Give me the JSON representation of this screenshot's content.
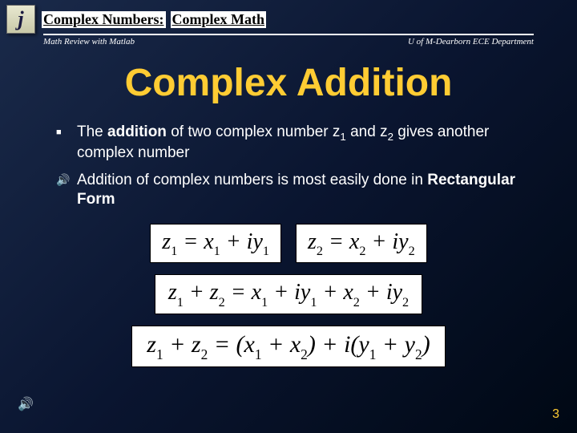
{
  "header": {
    "logo_letter": "j",
    "breadcrumb_1": "Complex Numbers:",
    "breadcrumb_2": "Complex Math",
    "sub_left": "Math Review with Matlab",
    "sub_right": "U of M-Dearborn ECE Department"
  },
  "title": "Complex Addition",
  "bullets": [
    {
      "marker": "■",
      "html": "The <b>addition</b> of two complex number z<sub>1</sub> and z<sub>2</sub> gives another complex number"
    },
    {
      "marker": "🔊",
      "html": "Addition of complex numbers is most easily done in <b>Rectangular Form</b>"
    }
  ],
  "equations": {
    "row1": [
      {
        "segments": [
          "z",
          "_1",
          " = x",
          "_1",
          " + iy",
          "_1"
        ]
      },
      {
        "segments": [
          "z",
          "_2",
          " = x",
          "_2",
          " + iy",
          "_2"
        ]
      }
    ],
    "row2": {
      "segments": [
        "z",
        "_1",
        " + z",
        "_2",
        " = x",
        "_1",
        " + iy",
        "_1",
        " + x",
        "_2",
        " + iy",
        "_2"
      ]
    },
    "row3": {
      "segments": [
        "z",
        "_1",
        " + z",
        "_2",
        " = (x",
        "_1",
        " + x",
        "_2",
        ") + i(y",
        "_1",
        " + y",
        "_2",
        ")"
      ]
    }
  },
  "page_number": "3",
  "colors": {
    "title_color": "#ffcc33",
    "text_color": "#ffffff",
    "eq_bg": "#ffffff",
    "eq_fg": "#000000"
  }
}
